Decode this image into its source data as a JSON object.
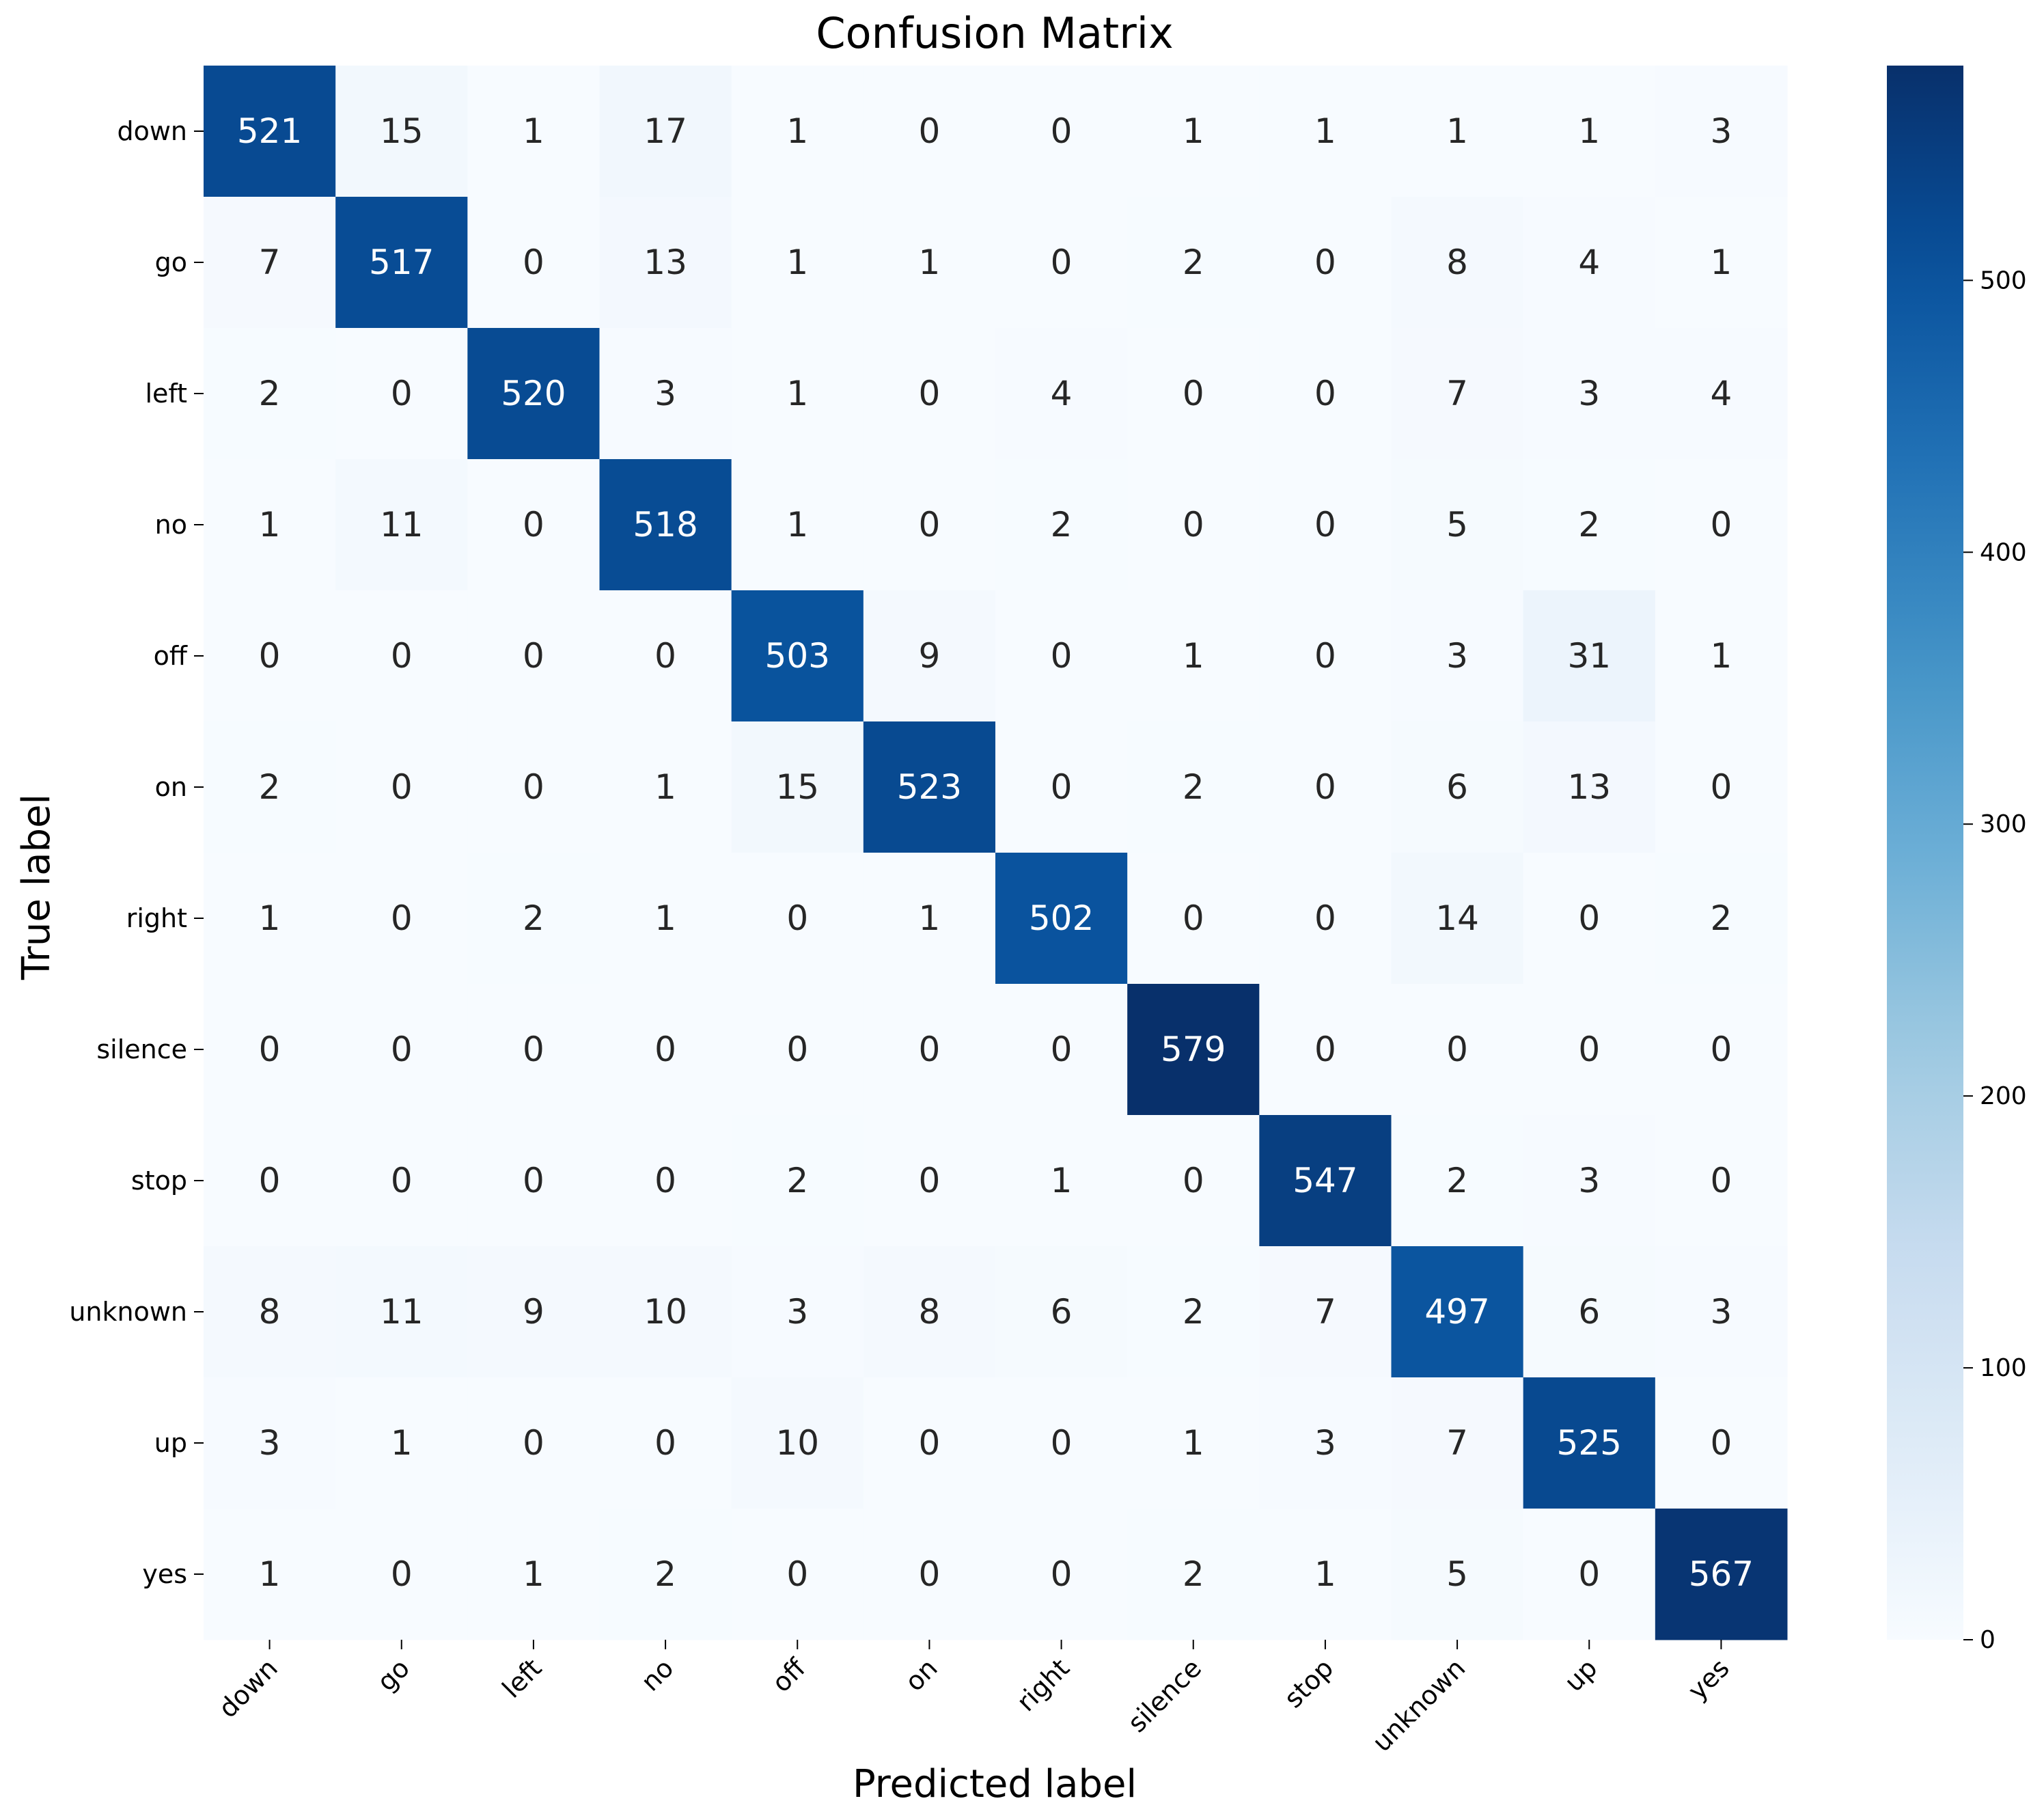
{
  "chart_data": {
    "type": "heatmap",
    "title": "Confusion Matrix",
    "xlabel": "Predicted label",
    "ylabel": "True label",
    "x_categories": [
      "down",
      "go",
      "left",
      "no",
      "off",
      "on",
      "right",
      "silence",
      "stop",
      "unknown",
      "up",
      "yes"
    ],
    "y_categories": [
      "down",
      "go",
      "left",
      "no",
      "off",
      "on",
      "right",
      "silence",
      "stop",
      "unknown",
      "up",
      "yes"
    ],
    "values": [
      [
        521,
        15,
        1,
        17,
        1,
        0,
        0,
        1,
        1,
        1,
        1,
        3
      ],
      [
        7,
        517,
        0,
        13,
        1,
        1,
        0,
        2,
        0,
        8,
        4,
        1
      ],
      [
        2,
        0,
        520,
        3,
        1,
        0,
        4,
        0,
        0,
        7,
        3,
        4
      ],
      [
        1,
        11,
        0,
        518,
        1,
        0,
        2,
        0,
        0,
        5,
        2,
        0
      ],
      [
        0,
        0,
        0,
        0,
        503,
        9,
        0,
        1,
        0,
        3,
        31,
        1
      ],
      [
        2,
        0,
        0,
        1,
        15,
        523,
        0,
        2,
        0,
        6,
        13,
        0
      ],
      [
        1,
        0,
        2,
        1,
        0,
        1,
        502,
        0,
        0,
        14,
        0,
        2
      ],
      [
        0,
        0,
        0,
        0,
        0,
        0,
        0,
        579,
        0,
        0,
        0,
        0
      ],
      [
        0,
        0,
        0,
        0,
        2,
        0,
        1,
        0,
        547,
        2,
        3,
        0
      ],
      [
        8,
        11,
        9,
        10,
        3,
        8,
        6,
        2,
        7,
        497,
        6,
        3
      ],
      [
        3,
        1,
        0,
        0,
        10,
        0,
        0,
        1,
        3,
        7,
        525,
        0
      ],
      [
        1,
        0,
        1,
        2,
        0,
        0,
        0,
        2,
        1,
        5,
        0,
        567
      ]
    ],
    "colormap": "Blues",
    "vmin": 0,
    "vmax": 579,
    "colorbar_ticks": [
      0,
      100,
      200,
      300,
      400,
      500
    ],
    "text_color_dark": "#262626",
    "text_color_light": "#ffffff"
  }
}
